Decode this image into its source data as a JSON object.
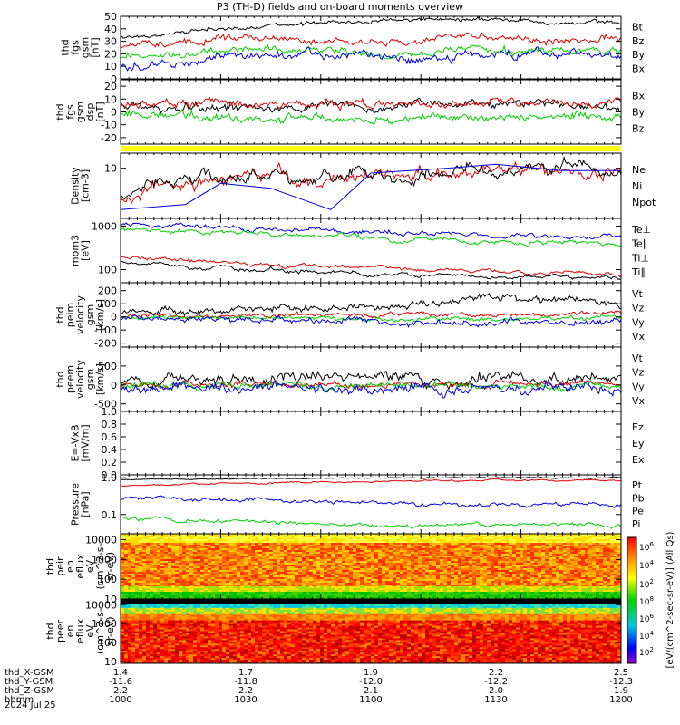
{
  "title": "P3 (TH-D) fields and on-board moments overview",
  "footer": {
    "rows": [
      {
        "label": "thd_X-GSM",
        "values": [
          "1.4",
          "1.7",
          "1.9",
          "2.2",
          "2.5"
        ]
      },
      {
        "label": "thd_Y-GSM",
        "values": [
          "-11.6",
          "-11.8",
          "-12.0",
          "-12.2",
          "-12.3"
        ]
      },
      {
        "label": "thd_Z-GSM",
        "values": [
          "2.2",
          "2.2",
          "2.1",
          "2.0",
          "1.9"
        ]
      },
      {
        "label": "hhmm",
        "values": [
          "1000",
          "1030",
          "1100",
          "1130",
          "1200"
        ]
      }
    ],
    "date": "2024 Jul 25"
  },
  "colorbar_label": "[eV/(cm^2-sec-sr-eV)] (All Qs)",
  "colors": {
    "black": "#000000",
    "red": "#e00000",
    "green": "#00d000",
    "blue": "#0000e0",
    "yellow": "#ffff00"
  },
  "chart_data": [
    {
      "type": "line",
      "ylabel": [
        "thd",
        "fgs",
        "gsm",
        "[nT]"
      ],
      "ylim": [
        0,
        50
      ],
      "yticks": [
        "50",
        "40",
        "30",
        "20",
        "10",
        "0"
      ],
      "legend": [
        {
          "name": "Bt",
          "color": "#000000"
        },
        {
          "name": "Bz",
          "color": "#e00000"
        },
        {
          "name": "By",
          "color": "#00d000"
        },
        {
          "name": "Bx",
          "color": "#0000e0"
        }
      ],
      "series": [
        {
          "name": "Bt",
          "color": "#000000",
          "x": [
            0,
            0.1,
            0.2,
            0.3,
            0.4,
            0.5,
            0.6,
            0.7,
            0.8,
            0.9,
            1.0
          ],
          "y": [
            33,
            36,
            40,
            42,
            44,
            46,
            47,
            47,
            46,
            45,
            45
          ]
        },
        {
          "name": "Bz",
          "color": "#e00000",
          "x": [
            0,
            0.1,
            0.2,
            0.3,
            0.4,
            0.5,
            0.6,
            0.7,
            0.8,
            0.9,
            1.0
          ],
          "y": [
            26,
            28,
            33,
            32,
            30,
            30,
            31,
            34,
            32,
            30,
            32
          ]
        },
        {
          "name": "By",
          "color": "#00d000",
          "x": [
            0,
            0.1,
            0.2,
            0.3,
            0.4,
            0.5,
            0.6,
            0.7,
            0.8,
            0.9,
            1.0
          ],
          "y": [
            17,
            18,
            22,
            23,
            22,
            21,
            20,
            23,
            22,
            22,
            23
          ]
        },
        {
          "name": "Bx",
          "color": "#0000e0",
          "x": [
            0,
            0.1,
            0.2,
            0.3,
            0.4,
            0.5,
            0.6,
            0.7,
            0.8,
            0.9,
            1.0
          ],
          "y": [
            11,
            12,
            18,
            20,
            19,
            20,
            14,
            17,
            20,
            20,
            19
          ]
        }
      ]
    },
    {
      "type": "line",
      "ylabel": [
        "thd",
        "fgs",
        "gsm",
        "dsp",
        "[nT]"
      ],
      "ylim": [
        -25,
        25
      ],
      "yticks": [
        "20",
        "10",
        "0",
        "-10",
        "-20"
      ],
      "legend": [
        {
          "name": "Bx",
          "color": "#000000"
        },
        {
          "name": "By",
          "color": "#00d000"
        },
        {
          "name": "Bz",
          "color": "#e00000"
        }
      ],
      "series": [
        {
          "name": "Bx",
          "color": "#000000",
          "x": [
            0,
            0.25,
            0.5,
            0.75,
            1.0
          ],
          "y": [
            3,
            4,
            5,
            6,
            4
          ]
        },
        {
          "name": "By",
          "color": "#00d000",
          "x": [
            0,
            0.25,
            0.5,
            0.75,
            1.0
          ],
          "y": [
            -2,
            -5,
            -6,
            -4,
            -4
          ]
        },
        {
          "name": "Bz",
          "color": "#e00000",
          "x": [
            0,
            0.25,
            0.5,
            0.75,
            1.0
          ],
          "y": [
            5,
            6,
            6,
            8,
            6
          ]
        }
      ]
    },
    {
      "type": "line",
      "ylabel": [
        "Density",
        "[cm-3]"
      ],
      "ylim": [
        1,
        20
      ],
      "yscale": "log",
      "yticks": [
        "10"
      ],
      "legend": [
        {
          "name": "Ne",
          "color": "#e00000"
        },
        {
          "name": "Ni",
          "color": "#000000"
        },
        {
          "name": "Npot",
          "color": "#0000e0"
        }
      ],
      "series": [
        {
          "name": "Ne",
          "color": "#e00000",
          "x": [
            0,
            0.1,
            0.2,
            0.3,
            0.4,
            0.5,
            0.6,
            0.7,
            0.8,
            0.9,
            1.0
          ],
          "y": [
            2.5,
            5,
            6,
            8,
            6,
            7,
            8,
            10,
            8,
            10,
            8
          ]
        },
        {
          "name": "Ni",
          "color": "#000000",
          "x": [
            0,
            0.1,
            0.2,
            0.3,
            0.4,
            0.5,
            0.6,
            0.7,
            0.8,
            0.9,
            1.0
          ],
          "y": [
            2.4,
            5,
            6,
            8,
            6,
            7,
            8,
            10,
            8,
            10,
            8
          ]
        },
        {
          "name": "Npot",
          "color": "#0000e0",
          "x": [
            0,
            0.13,
            0.2,
            0.3,
            0.42,
            0.5,
            0.65,
            0.75,
            0.88,
            1.0
          ],
          "y": [
            1.5,
            1.9,
            5,
            4,
            1.5,
            8,
            10,
            12,
            9,
            9
          ]
        }
      ]
    },
    {
      "type": "line",
      "ylabel": [
        "mom3",
        "[eV]"
      ],
      "ylim": [
        50,
        1500
      ],
      "yscale": "log",
      "yticks": [
        "1000",
        "100"
      ],
      "legend": [
        {
          "name": "Te⊥",
          "color": "#e00000"
        },
        {
          "name": "Te∥",
          "color": "#000000"
        },
        {
          "name": "Ti⊥",
          "color": "#0000e0"
        },
        {
          "name": "Ti∥",
          "color": "#00d000"
        }
      ],
      "series": [
        {
          "name": "Te⊥",
          "color": "#e00000",
          "x": [
            0,
            0.25,
            0.5,
            0.75,
            1.0
          ],
          "y": [
            200,
            130,
            110,
            90,
            80
          ]
        },
        {
          "name": "Te∥",
          "color": "#000000",
          "x": [
            0,
            0.25,
            0.5,
            0.75,
            1.0
          ],
          "y": [
            150,
            100,
            80,
            70,
            65
          ]
        },
        {
          "name": "Ti⊥",
          "color": "#0000e0",
          "x": [
            0,
            0.25,
            0.5,
            0.75,
            1.0
          ],
          "y": [
            1100,
            900,
            700,
            600,
            550
          ]
        },
        {
          "name": "Ti∥",
          "color": "#00d000",
          "x": [
            0,
            0.25,
            0.5,
            0.75,
            1.0
          ],
          "y": [
            900,
            700,
            550,
            450,
            400
          ]
        }
      ]
    },
    {
      "type": "line",
      "ylabel": [
        "thd",
        "peim",
        "velocity",
        "gsm",
        "[km/s]"
      ],
      "ylim": [
        -230,
        260
      ],
      "yticks": [
        "200",
        "100",
        "0",
        "-100",
        "-200"
      ],
      "legend": [
        {
          "name": "Vt",
          "color": "#000000"
        },
        {
          "name": "Vz",
          "color": "#e00000"
        },
        {
          "name": "Vy",
          "color": "#00d000"
        },
        {
          "name": "Vx",
          "color": "#0000e0"
        }
      ],
      "series": [
        {
          "name": "Vt",
          "color": "#000000",
          "x": [
            0,
            0.25,
            0.5,
            0.75,
            1.0
          ],
          "y": [
            30,
            50,
            80,
            150,
            90
          ]
        },
        {
          "name": "Vz",
          "color": "#e00000",
          "x": [
            0,
            0.25,
            0.5,
            0.75,
            1.0
          ],
          "y": [
            10,
            10,
            20,
            10,
            30
          ]
        },
        {
          "name": "Vy",
          "color": "#00d000",
          "x": [
            0,
            0.25,
            0.5,
            0.75,
            1.0
          ],
          "y": [
            0,
            -10,
            -10,
            -20,
            0
          ]
        },
        {
          "name": "Vx",
          "color": "#0000e0",
          "x": [
            0,
            0.25,
            0.5,
            0.75,
            1.0
          ],
          "y": [
            -10,
            -30,
            -40,
            -60,
            -20
          ]
        }
      ]
    },
    {
      "type": "line",
      "ylabel": [
        "thd",
        "peem",
        "velocity",
        "gsm",
        "[km/s]"
      ],
      "ylim": [
        -700,
        1000
      ],
      "yticks": [
        "500",
        "0",
        "-500"
      ],
      "legend": [
        {
          "name": "Vt",
          "color": "#000000"
        },
        {
          "name": "Vz",
          "color": "#e00000"
        },
        {
          "name": "Vy",
          "color": "#00d000"
        },
        {
          "name": "Vx",
          "color": "#0000e0"
        }
      ],
      "series": [
        {
          "name": "Vt",
          "color": "#000000",
          "x": [
            0,
            0.25,
            0.5,
            0.75,
            1.0
          ],
          "y": [
            80,
            120,
            180,
            200,
            150
          ]
        },
        {
          "name": "Vz",
          "color": "#e00000",
          "x": [
            0,
            0.25,
            0.5,
            0.75,
            1.0
          ],
          "y": [
            10,
            20,
            20,
            30,
            20
          ]
        },
        {
          "name": "Vy",
          "color": "#00d000",
          "x": [
            0,
            0.25,
            0.5,
            0.75,
            1.0
          ],
          "y": [
            0,
            -20,
            -30,
            -30,
            -20
          ]
        },
        {
          "name": "Vx",
          "color": "#0000e0",
          "x": [
            0,
            0.25,
            0.5,
            0.75,
            1.0
          ],
          "y": [
            -30,
            -60,
            -100,
            -120,
            -80
          ]
        }
      ]
    },
    {
      "type": "line",
      "ylabel": [
        "E=-VxB",
        "[mV/m]"
      ],
      "ylim": [
        0,
        1
      ],
      "yticks": [
        "1.0",
        "0.8",
        "0.6",
        "0.4",
        "0.2",
        "0.0"
      ],
      "legend": [
        {
          "name": "Ez",
          "color": "#e00000"
        },
        {
          "name": "Ey",
          "color": "#00d000"
        },
        {
          "name": "Ex",
          "color": "#0000e0"
        }
      ],
      "series": []
    },
    {
      "type": "line",
      "ylabel": [
        "Pressure",
        "[nPa]"
      ],
      "ylim": [
        0.03,
        1.2
      ],
      "yscale": "log",
      "yticks": [
        "1.0",
        "0.1"
      ],
      "legend": [
        {
          "name": "Pt",
          "color": "#000000"
        },
        {
          "name": "Pb",
          "color": "#e00000"
        },
        {
          "name": "Pe",
          "color": "#00d000"
        },
        {
          "name": "Pi",
          "color": "#0000e0"
        }
      ],
      "series": [
        {
          "name": "Pt",
          "color": "#000000",
          "x": [
            0,
            0.25,
            0.5,
            0.75,
            1.0
          ],
          "y": [
            0.9,
            0.95,
            1.0,
            1.0,
            1.0
          ]
        },
        {
          "name": "Pb",
          "color": "#e00000",
          "x": [
            0,
            0.25,
            0.5,
            0.75,
            1.0
          ],
          "y": [
            0.6,
            0.7,
            0.8,
            0.85,
            0.85
          ]
        },
        {
          "name": "Pi",
          "color": "#0000e0",
          "x": [
            0,
            0.25,
            0.5,
            0.75,
            1.0
          ],
          "y": [
            0.3,
            0.25,
            0.2,
            0.18,
            0.18
          ]
        },
        {
          "name": "Pe",
          "color": "#00d000",
          "x": [
            0,
            0.25,
            0.5,
            0.75,
            1.0
          ],
          "y": [
            0.08,
            0.06,
            0.05,
            0.05,
            0.05
          ]
        }
      ]
    },
    {
      "type": "heatmap",
      "ylabel": [
        "thd",
        "peir",
        "en",
        "eflux",
        "eV",
        "(cm^2-s-",
        "sr-eV)"
      ],
      "ylim": [
        10,
        20000
      ],
      "yscale": "log",
      "yticks": [
        "10000",
        "1000",
        "100",
        "10"
      ],
      "colorbar_ticks": [
        "10^6",
        "10^4",
        "10^2"
      ]
    },
    {
      "type": "heatmap",
      "ylabel": [
        "thd",
        "peer",
        "en",
        "eflux",
        "eV",
        "(cm^2-s-",
        "sr-eV)"
      ],
      "ylim": [
        8,
        20000
      ],
      "yscale": "log",
      "yticks": [
        "10000",
        "1000",
        "100",
        "10"
      ],
      "colorbar_ticks": [
        "10^8",
        "10^6",
        "10^4",
        "10^2"
      ]
    }
  ]
}
